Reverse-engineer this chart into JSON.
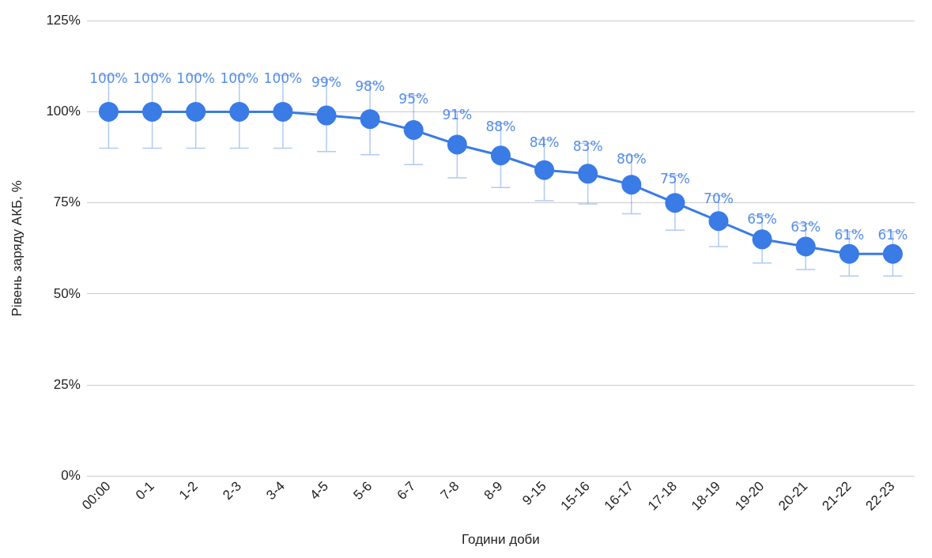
{
  "chart_data": {
    "type": "line",
    "xlabel": "Години доби",
    "ylabel": "Рівень заряду АКБ, %",
    "categories": [
      "00:00",
      "0-1",
      "1-2",
      "2-3",
      "3-4",
      "4-5",
      "5-6",
      "6-7",
      "7-8",
      "8-9",
      "9-15",
      "15-16",
      "16-17",
      "17-18",
      "18-19",
      "19-20",
      "20-21",
      "21-22",
      "22-23"
    ],
    "series": [
      {
        "color": "#3a7be6",
        "values": [
          100,
          100,
          100,
          100,
          100,
          99,
          98,
          95,
          91,
          88,
          84,
          83,
          80,
          75,
          70,
          65,
          63,
          61,
          61
        ],
        "value_labels": [
          "100%",
          "100%",
          "100%",
          "100%",
          "100%",
          "99%",
          "98%",
          "95%",
          "91%",
          "88%",
          "84%",
          "83%",
          "80%",
          "75%",
          "70%",
          "65%",
          "63%",
          "61%",
          "61%"
        ],
        "errors": [
          10,
          10,
          10,
          10,
          10,
          9.9,
          9.8,
          9.5,
          9.1,
          8.8,
          8.4,
          8.3,
          8,
          7.5,
          7,
          6.5,
          6.3,
          6.1,
          6.1
        ]
      }
    ],
    "ylim": [
      0,
      125
    ],
    "yticks": [
      {
        "value": 0,
        "label": "0%"
      },
      {
        "value": 25,
        "label": "25%"
      },
      {
        "value": 50,
        "label": "50%"
      },
      {
        "value": 75,
        "label": "75%"
      },
      {
        "value": 100,
        "label": "100%"
      },
      {
        "value": 125,
        "label": "125%"
      }
    ],
    "grid": "y",
    "legend": false,
    "marker": "circle",
    "line_style": "solid"
  }
}
